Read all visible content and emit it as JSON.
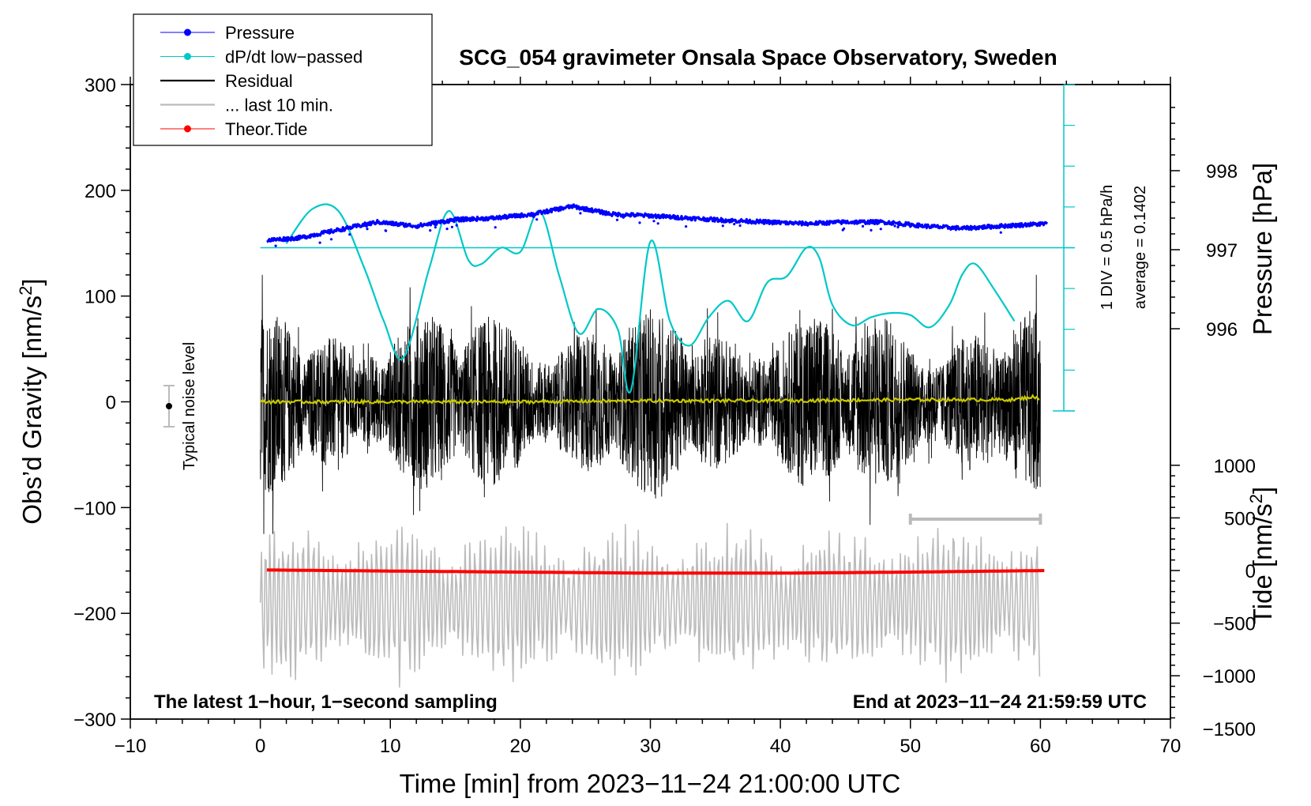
{
  "chart_data": {
    "type": "line",
    "title": "SCG_054 gravimeter Onsala Space Observatory, Sweden",
    "xlabel": "Time [min] from 2023−11−24 21:00:00 UTC",
    "ylabel_left": "Obs’d Gravity [nm/s",
    "ylabel_left_sup": "2",
    "ylabel_left_close": "]",
    "ylabel_right_top": "Pressure [hPa]",
    "ylabel_right_bottom": "Tide [nm/s",
    "ylabel_right_bottom_sup": "2",
    "ylabel_right_bottom_close": "]",
    "xlim": [
      -10,
      70
    ],
    "ylim": [
      -300,
      300
    ],
    "xticks": [
      "−10",
      "0",
      "10",
      "20",
      "30",
      "40",
      "50",
      "60",
      "70"
    ],
    "yticks": [
      "300",
      "200",
      "100",
      "0",
      "−100",
      "−200",
      "−300"
    ],
    "pressure_ticks": [
      "998",
      "997",
      "996"
    ],
    "tide_ticks": [
      "1000",
      "500",
      "0",
      "−500",
      "−1000",
      "−1500"
    ],
    "pressure_scale": "1 DIV = 0.5 hPa/h",
    "pressure_average": "average = 0.1402",
    "noise_label": "Typical noise level",
    "info_left": "The latest 1−hour, 1−second sampling",
    "info_right": "End at 2023−11−24 21:59:59 UTC",
    "legend": [
      {
        "label": "Pressure",
        "color": "#0000ff",
        "marker": true
      },
      {
        "label": "dP/dt low−passed",
        "color": "#00c8c8",
        "marker": true
      },
      {
        "label": "Residual",
        "color": "#000000",
        "marker": false
      },
      {
        "label": "... last 10 min.",
        "color": "#bbbbbb",
        "marker": false
      },
      {
        "label": "Theor.Tide",
        "color": "#ff0000",
        "marker": true
      }
    ],
    "series": [
      {
        "name": "Pressure",
        "unit": "hPa",
        "color": "#0000ff",
        "x": [
          0.5,
          3,
          6,
          9,
          12,
          15,
          18,
          21,
          24,
          27,
          30,
          33,
          36,
          39,
          42,
          45,
          48,
          51,
          54,
          57,
          60.5
        ],
        "y": [
          997.12,
          997.15,
          997.25,
          997.35,
          997.3,
          997.38,
          997.4,
          997.45,
          997.55,
          997.45,
          997.43,
          997.4,
          997.37,
          997.35,
          997.33,
          997.35,
          997.35,
          997.3,
          997.27,
          997.3,
          997.33
        ]
      },
      {
        "name": "dP/dt low−passed",
        "unit": "scaled div (0–6)",
        "color": "#00c8c8",
        "x": [
          2,
          4,
          6,
          8,
          9.5,
          11,
          13,
          14.5,
          16,
          17,
          18.5,
          20,
          21.5,
          23,
          24.5,
          26,
          27.5,
          28.5,
          30,
          31.5,
          33,
          34.5,
          36,
          37.5,
          39,
          40.5,
          42,
          43,
          44,
          45.5,
          47,
          48.5,
          50,
          51.5,
          53,
          54,
          55,
          56.5,
          58
        ],
        "y": [
          4.1,
          4.95,
          4.9,
          3.5,
          2.2,
          1.3,
          3.5,
          4.9,
          3.7,
          3.6,
          4.0,
          3.9,
          4.9,
          3.3,
          1.9,
          2.5,
          2.0,
          0.5,
          4.15,
          2.2,
          1.6,
          2.3,
          2.7,
          2.2,
          3.15,
          3.3,
          4.0,
          3.75,
          2.6,
          2.1,
          2.3,
          2.4,
          2.35,
          2.05,
          2.6,
          3.35,
          3.6,
          2.95,
          2.2
        ]
      },
      {
        "name": "Residual",
        "unit": "nm/s²",
        "color": "#000000",
        "envelope_abs_max": 110,
        "x_range": [
          0,
          60
        ]
      },
      {
        "name": "Residual smoothed",
        "unit": "nm/s²",
        "color": "#c8c800",
        "x": [
          0,
          10,
          20,
          30,
          40,
          50,
          58,
          59.5,
          60
        ],
        "y": [
          0,
          0,
          0,
          1,
          1,
          2,
          2,
          5,
          1
        ]
      },
      {
        "name": "... last 10 min.",
        "unit": "nm/s² (scaled)",
        "color": "#bbbbbb",
        "envelope_abs_max": 80,
        "x_range": [
          0,
          60
        ],
        "x_scale_bar": [
          50,
          60
        ]
      },
      {
        "name": "Theor.Tide",
        "unit": "nm/s²",
        "color": "#ff0000",
        "x": [
          0.5,
          10,
          20,
          30,
          40,
          50,
          60.5
        ],
        "y": [
          5,
          -5,
          -15,
          -25,
          -25,
          -15,
          0
        ]
      }
    ]
  }
}
